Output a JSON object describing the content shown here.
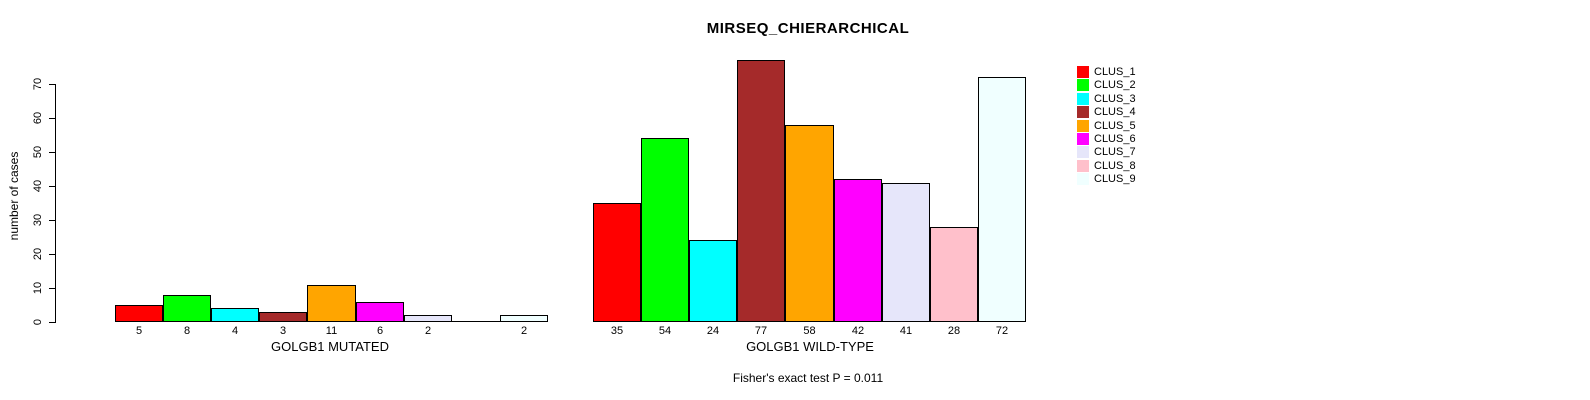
{
  "chart_data": {
    "type": "bar",
    "title": "MIRSEQ_CHIERARCHICAL",
    "ylabel": "number of cases",
    "axis_max": 70,
    "yticks": [
      0,
      10,
      20,
      30,
      40,
      50,
      60,
      70
    ],
    "grid": false,
    "legend_position": "right",
    "clusters": [
      {
        "name": "CLUS_1",
        "color": "#FF0000"
      },
      {
        "name": "CLUS_2",
        "color": "#00FF00"
      },
      {
        "name": "CLUS_3",
        "color": "#00FFFF"
      },
      {
        "name": "CLUS_4",
        "color": "#A52A2A"
      },
      {
        "name": "CLUS_5",
        "color": "#FFA500"
      },
      {
        "name": "CLUS_6",
        "color": "#FF00FF"
      },
      {
        "name": "CLUS_7",
        "color": "#E6E6FA"
      },
      {
        "name": "CLUS_8",
        "color": "#FFC0CB"
      },
      {
        "name": "CLUS_9",
        "color": "#F0FFFF"
      }
    ],
    "groups": [
      {
        "label": "GOLGB1 MUTATED",
        "values": [
          5,
          8,
          4,
          3,
          11,
          6,
          2,
          0,
          2
        ]
      },
      {
        "label": "GOLGB1 WILD-TYPE",
        "values": [
          35,
          54,
          24,
          77,
          58,
          42,
          41,
          28,
          72
        ]
      }
    ],
    "annotation": "Fisher's exact test P = 0.011"
  }
}
